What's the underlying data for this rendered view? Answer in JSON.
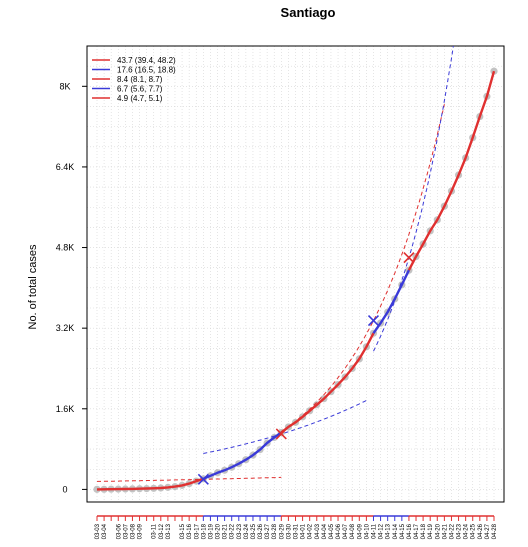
{
  "chart_data": {
    "type": "line",
    "title": "Santiago",
    "xlabel": "",
    "ylabel": "No. of  total  cases",
    "ylim": [
      -250,
      8800
    ],
    "yticks": [
      0,
      1600,
      3200,
      4800,
      6400,
      8000
    ],
    "ytick_labels": [
      "0",
      "1.6K",
      "3.2K",
      "4.8K",
      "6.4K",
      "8K"
    ],
    "grid": true,
    "legend_position": "top-left",
    "colors": {
      "red": "#e03030",
      "blue": "#3a3ad8",
      "observed": "#b8b8b8"
    },
    "x_dates": [
      "03-03",
      "03-04",
      "03-05",
      "03-06",
      "03-07",
      "03-08",
      "03-09",
      "03-10",
      "03-11",
      "03-12",
      "03-13",
      "03-14",
      "03-15",
      "03-16",
      "03-17",
      "03-18",
      "03-19",
      "03-20",
      "03-21",
      "03-22",
      "03-23",
      "03-24",
      "03-25",
      "03-26",
      "03-27",
      "03-28",
      "03-29",
      "03-30",
      "03-31",
      "04-01",
      "04-02",
      "04-03",
      "04-04",
      "04-05",
      "04-06",
      "04-07",
      "04-08",
      "04-09",
      "04-10",
      "04-11",
      "04-12",
      "04-13",
      "04-14",
      "04-15",
      "04-16",
      "04-17",
      "04-18",
      "04-19",
      "04-20",
      "04-21",
      "04-22",
      "04-23",
      "04-24",
      "04-25",
      "04-26",
      "04-27",
      "04-28"
    ],
    "x_ticklabels": [
      "03-03",
      "03-04",
      "03-06",
      "03-07",
      "03-08",
      "03-09",
      "03-11",
      "03-12",
      "03-13",
      "03-15",
      "03-16",
      "03-17",
      "03-18",
      "03-19",
      "03-20",
      "03-21",
      "03-22",
      "03-23",
      "03-24",
      "03-25",
      "03-26",
      "03-27",
      "03-28",
      "03-29",
      "03-30",
      "03-31",
      "04-01",
      "04-02",
      "04-03",
      "04-04",
      "04-05",
      "04-06",
      "04-07",
      "04-08",
      "04-09",
      "04-10",
      "04-11",
      "04-12",
      "04-13",
      "04-14",
      "04-15",
      "04-16",
      "04-17",
      "04-18",
      "04-19",
      "04-20",
      "04-21",
      "04-22",
      "04-23",
      "04-24",
      "04-25",
      "04-26",
      "04-27",
      "04-28"
    ],
    "observed_series": {
      "name": "Observed total cases",
      "values": [
        1,
        2,
        4,
        6,
        8,
        10,
        14,
        17,
        22,
        28,
        40,
        55,
        80,
        115,
        165,
        210,
        270,
        330,
        380,
        440,
        510,
        590,
        680,
        790,
        920,
        1030,
        1130,
        1240,
        1330,
        1440,
        1560,
        1680,
        1800,
        1940,
        2080,
        2230,
        2400,
        2590,
        2830,
        3100,
        3300,
        3520,
        3780,
        4060,
        4350,
        4620,
        4870,
        5130,
        5350,
        5620,
        5920,
        6240,
        6580,
        6980,
        7400,
        7800,
        8300
      ]
    },
    "phase_series": [
      {
        "name": "43.7 (39.4, 48.2)",
        "color": "red",
        "doubling": 43.7,
        "start": "03-03",
        "end": "03-18",
        "start_value": 2,
        "marker_value": 200,
        "fit_to": "03-18",
        "projection_to": "03-29",
        "projection_cap": 8800
      },
      {
        "name": "17.6 (16.5, 18.8)",
        "color": "blue",
        "doubling": 17.6,
        "start": "03-18",
        "end": "03-29",
        "start_value": 200,
        "marker_value": 1100,
        "fit_to": "03-29",
        "projection_to": "04-10",
        "projection_cap": 8800
      },
      {
        "name": "8.4 (8.1, 8.7)",
        "color": "red",
        "doubling": 8.4,
        "start": "03-29",
        "end": "04-11",
        "start_value": 1100,
        "marker_value": 3350,
        "fit_to": "04-11",
        "projection_to": "04-21",
        "projection_cap": 8800
      },
      {
        "name": "6.7 (5.6, 7.7)",
        "color": "blue",
        "doubling": 6.7,
        "start": "04-11",
        "end": "04-16",
        "start_value": 3350,
        "marker_value": 4600,
        "fit_to": "04-16",
        "projection_to": "04-28",
        "projection_cap": 8800
      },
      {
        "name": "4.9 (4.7, 5.1)",
        "color": "red",
        "doubling": 4.9,
        "start": "04-16",
        "end": "04-28",
        "start_value": 4600,
        "marker_value": 8300,
        "fit_to": "04-28",
        "projection_to": "04-28",
        "projection_cap": 8800
      }
    ],
    "markers": [
      {
        "date": "03-18",
        "value": 200,
        "color": "blue"
      },
      {
        "date": "03-29",
        "value": 1100,
        "color": "red"
      },
      {
        "date": "04-11",
        "value": 3350,
        "color": "blue"
      },
      {
        "date": "04-16",
        "value": 4600,
        "color": "red"
      }
    ]
  }
}
